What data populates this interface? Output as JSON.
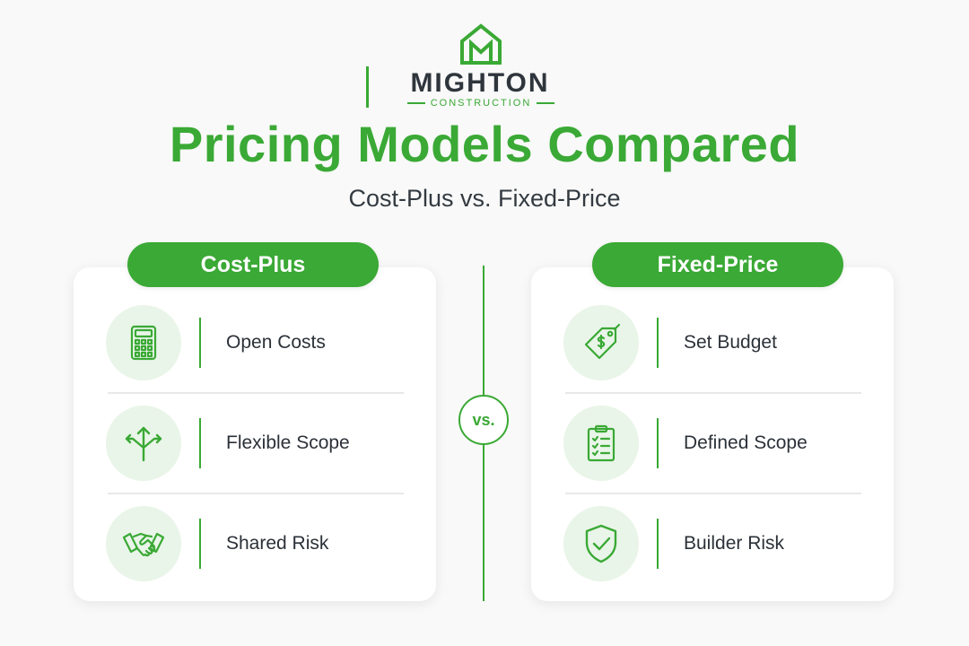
{
  "brand": {
    "name": "MIGHTON",
    "tagline": "CONSTRUCTION"
  },
  "title": "Pricing Models Compared",
  "subtitle": "Cost-Plus vs. Fixed-Price",
  "vs_label": "vs.",
  "colors": {
    "accent": "#3aa935",
    "icon_bg": "#e9f5e8",
    "text": "#2b3138",
    "background": "#f8f9f8"
  },
  "cost_plus": {
    "heading": "Cost-Plus",
    "items": [
      {
        "label": "Open Costs",
        "icon": "calculator-icon"
      },
      {
        "label": "Flexible Scope",
        "icon": "branching-arrows-icon"
      },
      {
        "label": "Shared Risk",
        "icon": "handshake-icon"
      }
    ]
  },
  "fixed_price": {
    "heading": "Fixed-Price",
    "items": [
      {
        "label": "Set Budget",
        "icon": "price-tag-icon"
      },
      {
        "label": "Defined Scope",
        "icon": "clipboard-checklist-icon"
      },
      {
        "label": "Builder Risk",
        "icon": "shield-check-icon"
      }
    ]
  }
}
